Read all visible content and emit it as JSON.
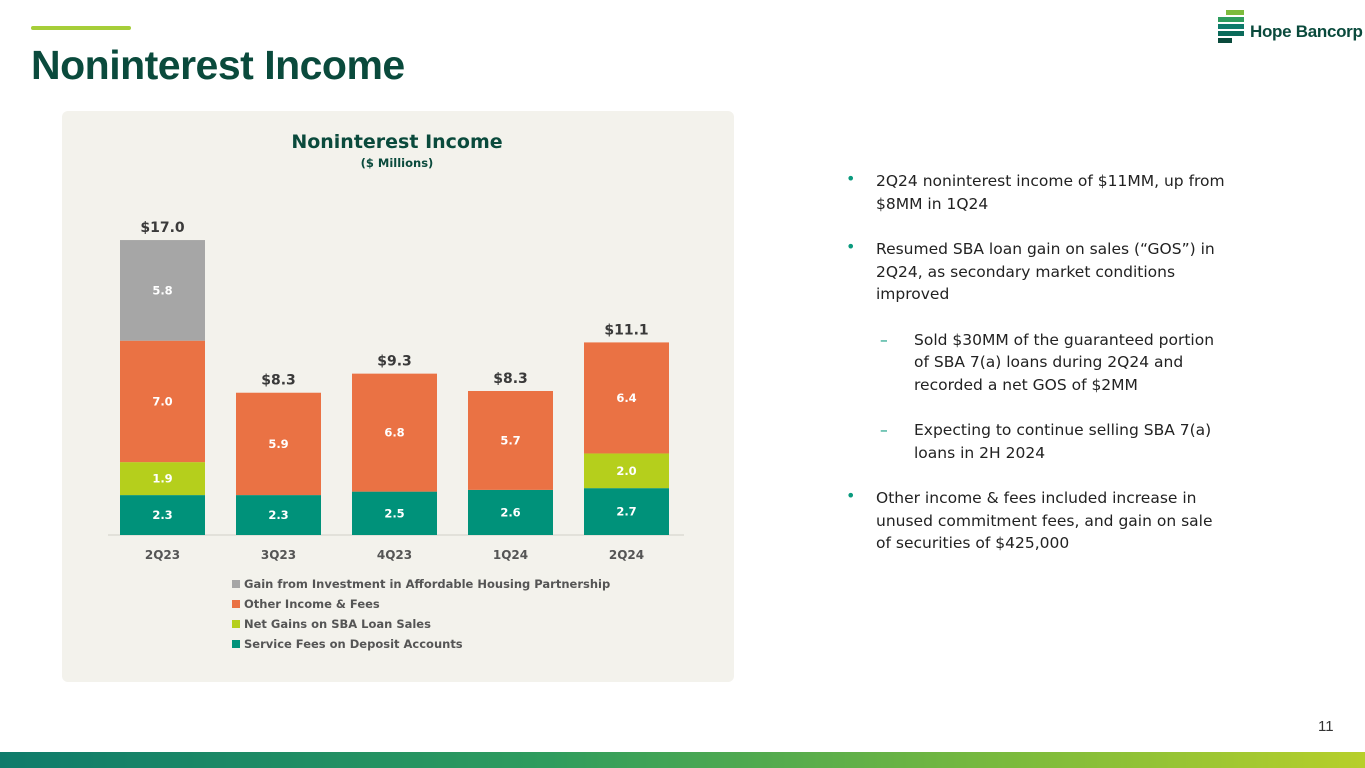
{
  "page": {
    "title": "Noninterest Income",
    "logo_text": "Hope Bancorp",
    "page_number": "11",
    "colors": {
      "title": "#0a4a3c",
      "accent": "#a6ce39",
      "bullet": "#0a9a7e"
    }
  },
  "bullets": [
    {
      "text": "2Q24 noninterest income of $11MM, up from $8MM in 1Q24",
      "level": 1
    },
    {
      "text": "Resumed SBA loan gain on sales (“GOS”) in 2Q24, as secondary market conditions improved",
      "level": 1
    },
    {
      "text": "Sold $30MM of the guaranteed portion of SBA 7(a) loans during 2Q24 and recorded a net GOS of $2MM",
      "level": 2
    },
    {
      "text": "Expecting to continue selling SBA 7(a) loans in 2H 2024",
      "level": 2
    },
    {
      "text": "Other income & fees included increase in unused commitment fees, and gain on sale of securities of $425,000",
      "level": 1
    }
  ],
  "chart_data": {
    "type": "bar",
    "stacked": true,
    "title": "Noninterest Income",
    "subtitle": "($ Millions)",
    "categories": [
      "2Q23",
      "3Q23",
      "4Q23",
      "1Q24",
      "2Q24"
    ],
    "series": [
      {
        "name": "Service Fees on Deposit Accounts",
        "color": "#00927a",
        "values": [
          2.3,
          2.3,
          2.5,
          2.6,
          2.7
        ]
      },
      {
        "name": "Net Gains on SBA Loan Sales",
        "color": "#b5cf1c",
        "values": [
          1.9,
          null,
          null,
          null,
          2.0
        ]
      },
      {
        "name": "Other Income & Fees",
        "color": "#ea7244",
        "values": [
          7.0,
          5.9,
          6.8,
          5.7,
          6.4
        ]
      },
      {
        "name": "Gain from Investment in Affordable Housing Partnership",
        "color": "#a6a6a6",
        "values": [
          5.8,
          null,
          null,
          null,
          null
        ]
      }
    ],
    "totals": [
      "$17.0",
      "$8.3",
      "$9.3",
      "$8.3",
      "$11.1"
    ],
    "legend_order": [
      "Gain from Investment in Affordable Housing Partnership",
      "Other Income & Fees",
      "Net Gains on SBA Loan Sales",
      "Service Fees on Deposit Accounts"
    ],
    "legend_position": "bottom",
    "grid": false
  }
}
